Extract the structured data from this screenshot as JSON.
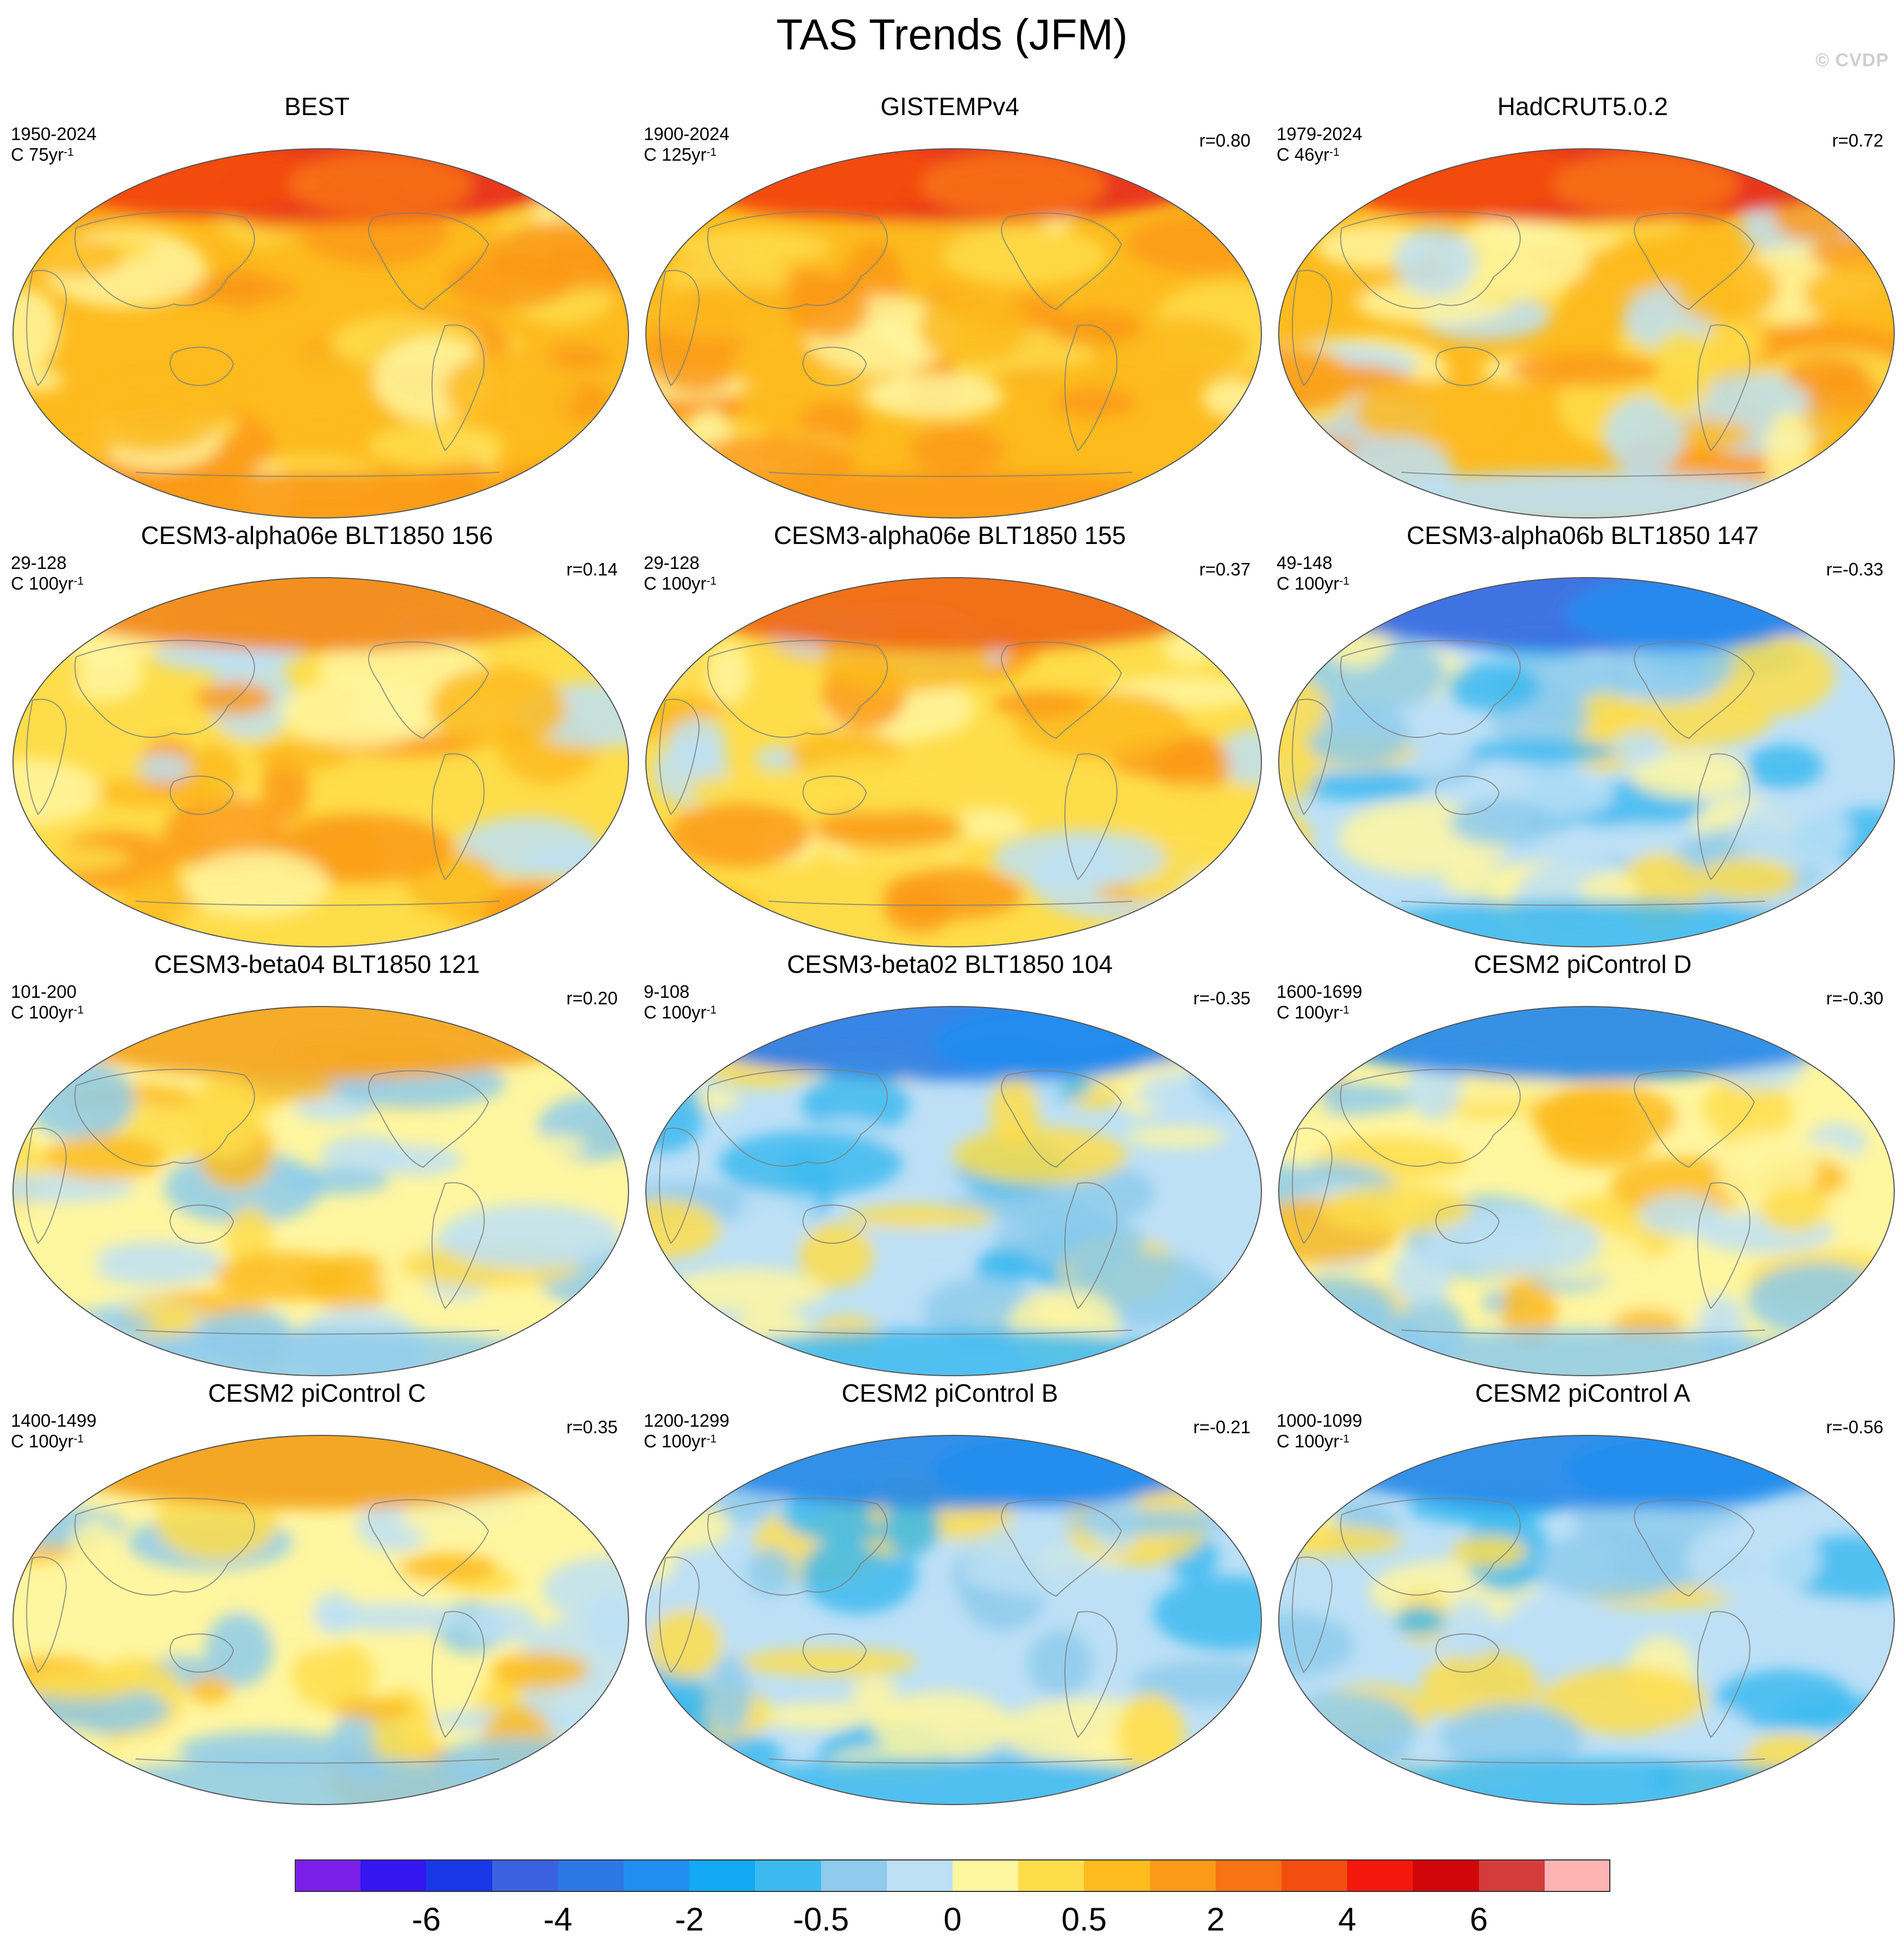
{
  "title": "TAS Trends (JFM)",
  "watermark": "© CVDP",
  "panels": [
    {
      "title": "BEST",
      "years": "1950-2024",
      "units_base": "C 75yr",
      "units_exp": "-1",
      "corr": "",
      "pattern": "obs_warm",
      "polar": "#e8301a"
    },
    {
      "title": "GISTEMPv4",
      "years": "1900-2024",
      "units_base": "C 125yr",
      "units_exp": "-1",
      "corr": "r=0.80",
      "pattern": "obs_warm",
      "polar": "#e8301a"
    },
    {
      "title": "HadCRUT5.0.2",
      "years": "1979-2024",
      "units_base": "C 46yr",
      "units_exp": "-1",
      "corr": "r=0.72",
      "pattern": "obs_hadcrut",
      "polar": "#e8301a"
    },
    {
      "title": "CESM3-alpha06e BLT1850 156",
      "years": "29-128",
      "units_base": "C 100yr",
      "units_exp": "-1",
      "corr": "r=0.14",
      "pattern": "model_warm",
      "polar": "#f28a1e"
    },
    {
      "title": "CESM3-alpha06e BLT1850 155",
      "years": "29-128",
      "units_base": "C 100yr",
      "units_exp": "-1",
      "corr": "r=0.37",
      "pattern": "model_warm",
      "polar": "#f06a18"
    },
    {
      "title": "CESM3-alpha06b BLT1850 147",
      "years": "49-148",
      "units_base": "C 100yr",
      "units_exp": "-1",
      "corr": "r=-0.33",
      "pattern": "cool",
      "polar": "#3a6ee0"
    },
    {
      "title": "CESM3-beta04 BLT1850 121",
      "years": "101-200",
      "units_base": "C 100yr",
      "units_exp": "-1",
      "corr": "r=0.20",
      "pattern": "mixed",
      "polar": "#f5a623"
    },
    {
      "title": "CESM3-beta02 BLT1850 104",
      "years": "9-108",
      "units_base": "C 100yr",
      "units_exp": "-1",
      "corr": "r=-0.35",
      "pattern": "cool",
      "polar": "#2f7fe6"
    },
    {
      "title": "CESM2 piControl D",
      "years": "1600-1699",
      "units_base": "C 100yr",
      "units_exp": "-1",
      "corr": "r=-0.30",
      "pattern": "mixed",
      "polar": "#2a8be8"
    },
    {
      "title": "CESM2 piControl C",
      "years": "1400-1499",
      "units_base": "C 100yr",
      "units_exp": "-1",
      "corr": "r=0.35",
      "pattern": "mixed",
      "polar": "#f3a21f"
    },
    {
      "title": "CESM2 piControl B",
      "years": "1200-1299",
      "units_base": "C 100yr",
      "units_exp": "-1",
      "corr": "r=-0.21",
      "pattern": "cool",
      "polar": "#2a8be8"
    },
    {
      "title": "CESM2 piControl A",
      "years": "1000-1099",
      "units_base": "C 100yr",
      "units_exp": "-1",
      "corr": "r=-0.56",
      "pattern": "cool",
      "polar": "#2a8be8"
    }
  ],
  "colorbar": {
    "colors": [
      "#7b1fe8",
      "#3616f0",
      "#1838e8",
      "#3a62e0",
      "#2b78e4",
      "#1f8ef0",
      "#12aaf4",
      "#3cbaf0",
      "#8ecbec",
      "#bde0f6",
      "#fff6a0",
      "#fedd4a",
      "#fdbb1e",
      "#fb9a18",
      "#f87314",
      "#f44d10",
      "#f4180c",
      "#d0060b",
      "#d43c3c",
      "#ffb3b3"
    ],
    "labels": [
      {
        "text": "-6",
        "boundary": 2
      },
      {
        "text": "-4",
        "boundary": 4
      },
      {
        "text": "-2",
        "boundary": 6
      },
      {
        "text": "-0.5",
        "boundary": 8
      },
      {
        "text": "0",
        "boundary": 10
      },
      {
        "text": "0.5",
        "boundary": 12
      },
      {
        "text": "2",
        "boundary": 14
      },
      {
        "text": "4",
        "boundary": 16
      },
      {
        "text": "6",
        "boundary": 18
      }
    ]
  }
}
